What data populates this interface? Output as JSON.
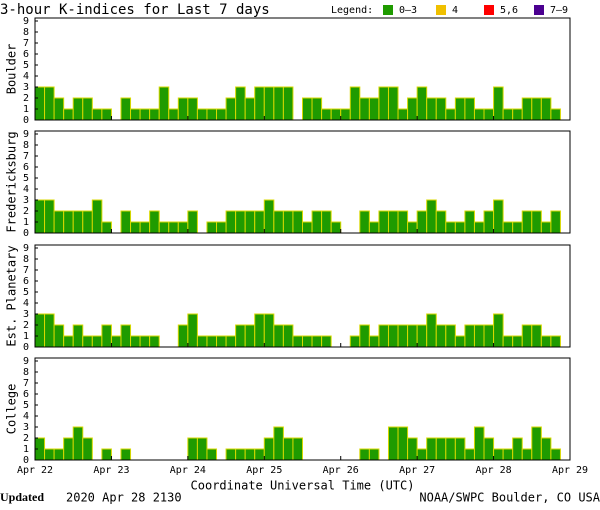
{
  "title": "3-hour K-indices for Last 7 days",
  "legend_title": "Legend:",
  "legend": [
    {
      "label": "0–3",
      "color": "#1f9b00"
    },
    {
      "label": "4",
      "color": "#f0c000"
    },
    {
      "label": "5,6",
      "color": "#ff0000"
    },
    {
      "label": "7–9",
      "color": "#4b0090"
    }
  ],
  "footer": {
    "updated_label": "Updated",
    "updated": "2020 Apr 28 2130",
    "credit": "NOAA/SWPC Boulder, CO USA"
  },
  "chart_data": [
    {
      "type": "bar",
      "ylabel": "Boulder",
      "color": "#1f9b00",
      "edgecolor": "#d8d800",
      "ylim": [
        0,
        9
      ],
      "yticks": [
        0,
        1,
        2,
        3,
        4,
        5,
        6,
        7,
        8,
        9
      ],
      "xlim": [
        0,
        56
      ],
      "values": [
        3,
        3,
        2,
        1,
        2,
        2,
        1,
        1,
        0,
        2,
        1,
        1,
        1,
        3,
        1,
        2,
        2,
        1,
        1,
        1,
        2,
        3,
        2,
        3,
        3,
        3,
        3,
        0,
        2,
        2,
        1,
        1,
        1,
        3,
        2,
        2,
        3,
        3,
        1,
        2,
        3,
        2,
        2,
        1,
        2,
        2,
        1,
        1,
        3,
        1,
        1,
        2,
        2,
        2,
        1,
        0
      ]
    },
    {
      "type": "bar",
      "ylabel": "Fredericksburg",
      "color": "#1f9b00",
      "edgecolor": "#d8d800",
      "ylim": [
        0,
        9
      ],
      "yticks": [
        0,
        1,
        2,
        3,
        4,
        5,
        6,
        7,
        8,
        9
      ],
      "xlim": [
        0,
        56
      ],
      "values": [
        3,
        3,
        2,
        2,
        2,
        2,
        3,
        1,
        0,
        2,
        1,
        1,
        2,
        1,
        1,
        1,
        2,
        0,
        1,
        1,
        2,
        2,
        2,
        2,
        3,
        2,
        2,
        2,
        1,
        2,
        2,
        1,
        0,
        0,
        2,
        1,
        2,
        2,
        2,
        1,
        2,
        3,
        2,
        1,
        1,
        2,
        1,
        2,
        3,
        1,
        1,
        2,
        2,
        1,
        2,
        0
      ]
    },
    {
      "type": "bar",
      "ylabel": "Est. Planetary",
      "color": "#1f9b00",
      "edgecolor": "#d8d800",
      "ylim": [
        0,
        9
      ],
      "yticks": [
        0,
        1,
        2,
        3,
        4,
        5,
        6,
        7,
        8,
        9
      ],
      "xlim": [
        0,
        56
      ],
      "values": [
        3,
        3,
        2,
        1,
        2,
        1,
        1,
        2,
        1,
        2,
        1,
        1,
        1,
        0,
        0,
        2,
        3,
        1,
        1,
        1,
        1,
        2,
        2,
        3,
        3,
        2,
        2,
        1,
        1,
        1,
        1,
        0,
        0,
        1,
        2,
        1,
        2,
        2,
        2,
        2,
        2,
        3,
        2,
        2,
        1,
        2,
        2,
        2,
        3,
        1,
        1,
        2,
        2,
        1,
        1,
        0
      ]
    },
    {
      "type": "bar",
      "ylabel": "College",
      "color": "#1f9b00",
      "edgecolor": "#d8d800",
      "ylim": [
        0,
        9
      ],
      "yticks": [
        0,
        1,
        2,
        3,
        4,
        5,
        6,
        7,
        8,
        9
      ],
      "xlim": [
        0,
        56
      ],
      "xlabel": "Coordinate Universal Time (UTC)",
      "xticks": [
        {
          "value": 0,
          "label": "Apr 22"
        },
        {
          "value": 8,
          "label": "Apr 23"
        },
        {
          "value": 16,
          "label": "Apr 24"
        },
        {
          "value": 24,
          "label": "Apr 25"
        },
        {
          "value": 32,
          "label": "Apr 26"
        },
        {
          "value": 40,
          "label": "Apr 27"
        },
        {
          "value": 48,
          "label": "Apr 28"
        },
        {
          "value": 56,
          "label": "Apr 29"
        }
      ],
      "values": [
        2,
        1,
        1,
        2,
        3,
        2,
        0,
        1,
        0,
        1,
        0,
        0,
        0,
        0,
        0,
        0,
        2,
        2,
        1,
        0,
        1,
        1,
        1,
        1,
        2,
        3,
        2,
        2,
        0,
        0,
        0,
        0,
        0,
        0,
        1,
        1,
        0,
        3,
        3,
        2,
        1,
        2,
        2,
        2,
        2,
        1,
        3,
        2,
        1,
        1,
        2,
        1,
        3,
        2,
        1,
        0
      ]
    }
  ]
}
